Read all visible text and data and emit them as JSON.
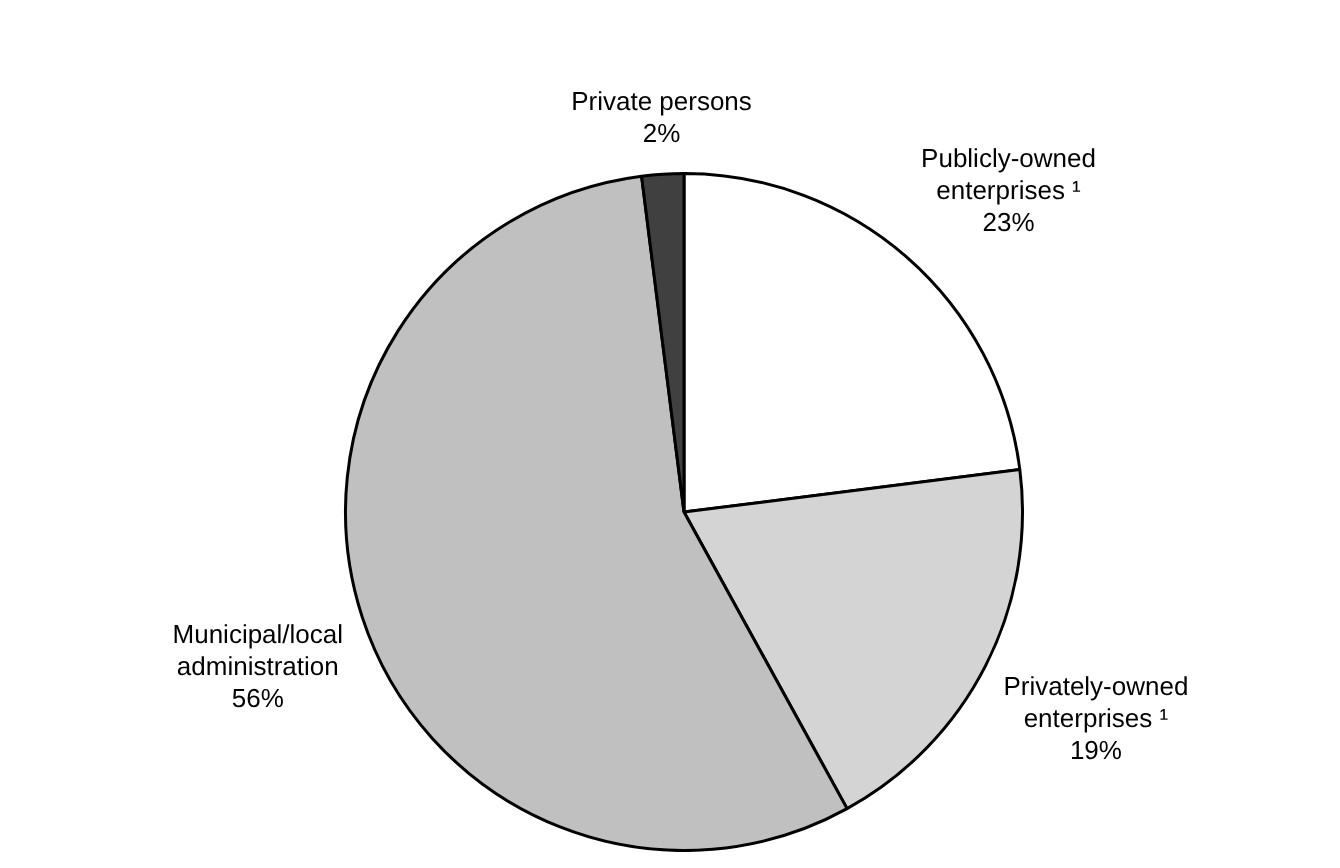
{
  "chart_data": {
    "type": "pie",
    "categories": [
      "Publicly-owned enterprises ¹",
      "Privately-owned enterprises ¹",
      "Municipal/local administration",
      "Private persons"
    ],
    "values": [
      23,
      19,
      56,
      2
    ],
    "colors": [
      "#ffffff",
      "#d4d4d4",
      "#c0c0c0",
      "#404040"
    ],
    "value_labels": [
      "23%",
      "19%",
      "56%",
      "2%"
    ]
  }
}
